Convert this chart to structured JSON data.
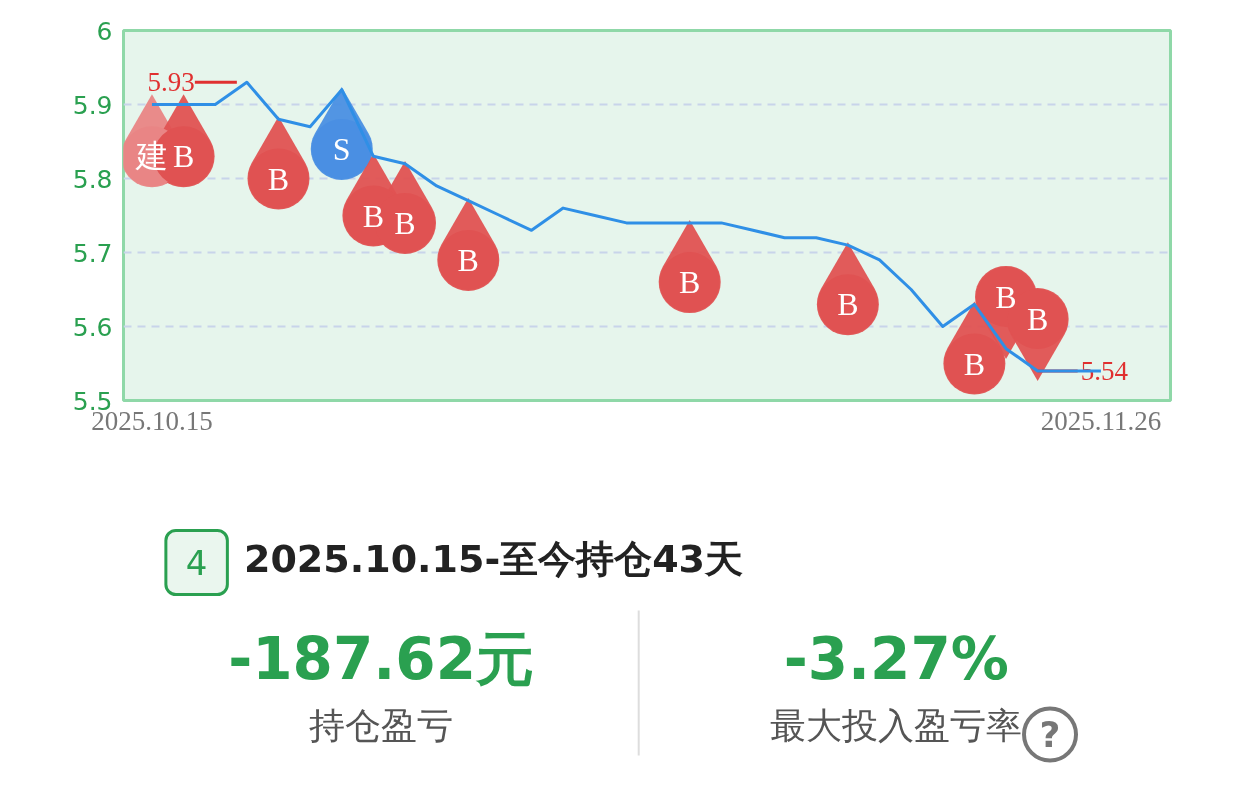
{
  "chart_data": [
    {
      "type": "line",
      "categories": [
        "2025.10.15",
        null,
        null,
        null,
        null,
        null,
        null,
        null,
        null,
        null,
        null,
        null,
        null,
        null,
        null,
        null,
        null,
        null,
        null,
        null,
        null,
        null,
        null,
        null,
        null,
        null,
        null,
        null,
        null,
        null,
        "2025.11.26"
      ],
      "ylim": [
        5.5,
        6
      ],
      "yticks": [
        5.5,
        5.6,
        5.7,
        5.8,
        5.9,
        6
      ],
      "grid": "y",
      "series": [
        {
          "type": "line",
          "color": "#2f8fe6",
          "values": [
            5.9,
            5.9,
            5.9,
            5.93,
            5.88,
            5.87,
            5.92,
            5.83,
            5.82,
            5.79,
            5.77,
            5.75,
            5.73,
            5.76,
            5.75,
            5.74,
            5.74,
            5.74,
            5.74,
            5.73,
            5.72,
            5.72,
            5.71,
            5.69,
            5.65,
            5.6,
            5.63,
            5.57,
            5.54,
            5.54,
            5.54
          ]
        },
        {
          "type": "scatter",
          "marker": "circle",
          "values": [
            5.83,
            5.83,
            null,
            null,
            5.8,
            null,
            5.84,
            5.75,
            5.74,
            null,
            5.69,
            null,
            null,
            null,
            null,
            null,
            null,
            5.66,
            null,
            null,
            null,
            null,
            5.63,
            null,
            null,
            null,
            5.55,
            5.64,
            5.61,
            null,
            null
          ],
          "colors": [
            "#e98585",
            "#e05252",
            null,
            null,
            "#e05252",
            null,
            "#4a8fe3",
            "#e05252",
            "#e05252",
            null,
            "#e05252",
            null,
            null,
            null,
            null,
            null,
            null,
            "#e05252",
            null,
            null,
            null,
            null,
            "#e05252",
            null,
            null,
            null,
            "#e05252",
            "#e05252",
            "#e05252",
            null,
            null
          ],
          "value_labels": [
            "建",
            "B",
            null,
            null,
            "B",
            null,
            "S",
            "B",
            "B",
            null,
            "B",
            null,
            null,
            null,
            null,
            null,
            null,
            "B",
            null,
            null,
            null,
            null,
            "B",
            null,
            null,
            null,
            "B",
            "B",
            "B",
            null,
            null
          ]
        }
      ],
      "annotations": [
        "5.93",
        {
          "text": "5.54",
          "y": 5.54
        }
      ]
    },
    {
      "type": "other",
      "annotations": [
        "4",
        "2025.10.15-至今持仓43天",
        "-187.62元",
        "持仓盈亏",
        "-3.27%",
        "最大投入盈亏率",
        "?"
      ]
    }
  ]
}
